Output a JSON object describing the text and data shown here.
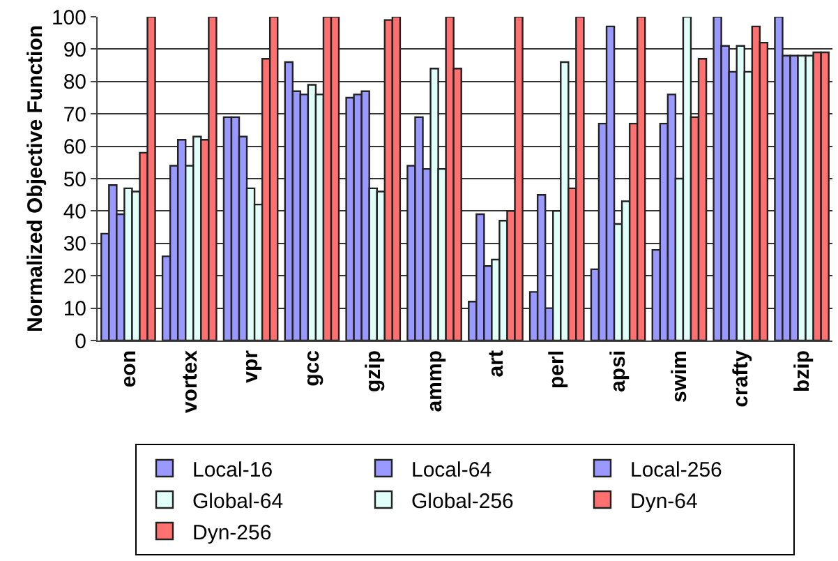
{
  "chart_data": {
    "type": "bar",
    "ylabel": "Normalized Objective Function",
    "categories": [
      "eon",
      "vortex",
      "vpr",
      "gcc",
      "gzip",
      "ammp",
      "art",
      "perl",
      "apsi",
      "swim",
      "crafty",
      "bzip"
    ],
    "series": [
      {
        "name": "Local-16",
        "color": "#9999ff",
        "values": [
          33,
          26,
          69,
          86,
          75,
          54,
          12,
          15,
          22,
          28,
          100,
          100
        ]
      },
      {
        "name": "Local-64",
        "color": "#9999ff",
        "values": [
          48,
          54,
          69,
          77,
          76,
          69,
          39,
          45,
          67,
          67,
          91,
          88
        ]
      },
      {
        "name": "Local-256",
        "color": "#9999ff",
        "values": [
          39,
          62,
          63,
          76,
          77,
          53,
          23,
          10,
          97,
          76,
          83,
          88
        ]
      },
      {
        "name": "Global-64",
        "color": "#e0fff8",
        "values": [
          47,
          54,
          47,
          79,
          47,
          84,
          25,
          40,
          36,
          50,
          91,
          88
        ]
      },
      {
        "name": "Global-256",
        "color": "#e0fff8",
        "values": [
          46,
          63,
          42,
          76,
          46,
          53,
          37,
          86,
          43,
          100,
          83,
          88
        ]
      },
      {
        "name": "Dyn-64",
        "color": "#ff7070",
        "values": [
          58,
          62,
          87,
          100,
          99,
          100,
          40,
          47,
          67,
          69,
          97,
          89
        ]
      },
      {
        "name": "Dyn-256",
        "color": "#ff7070",
        "values": [
          100,
          100,
          100,
          100,
          100,
          84,
          100,
          100,
          100,
          87,
          92,
          89
        ]
      }
    ],
    "ylim": [
      0,
      100
    ],
    "yticks": [
      0,
      10,
      20,
      30,
      40,
      50,
      60,
      70,
      80,
      90,
      100
    ],
    "grid": "y",
    "legend": "bottom"
  }
}
